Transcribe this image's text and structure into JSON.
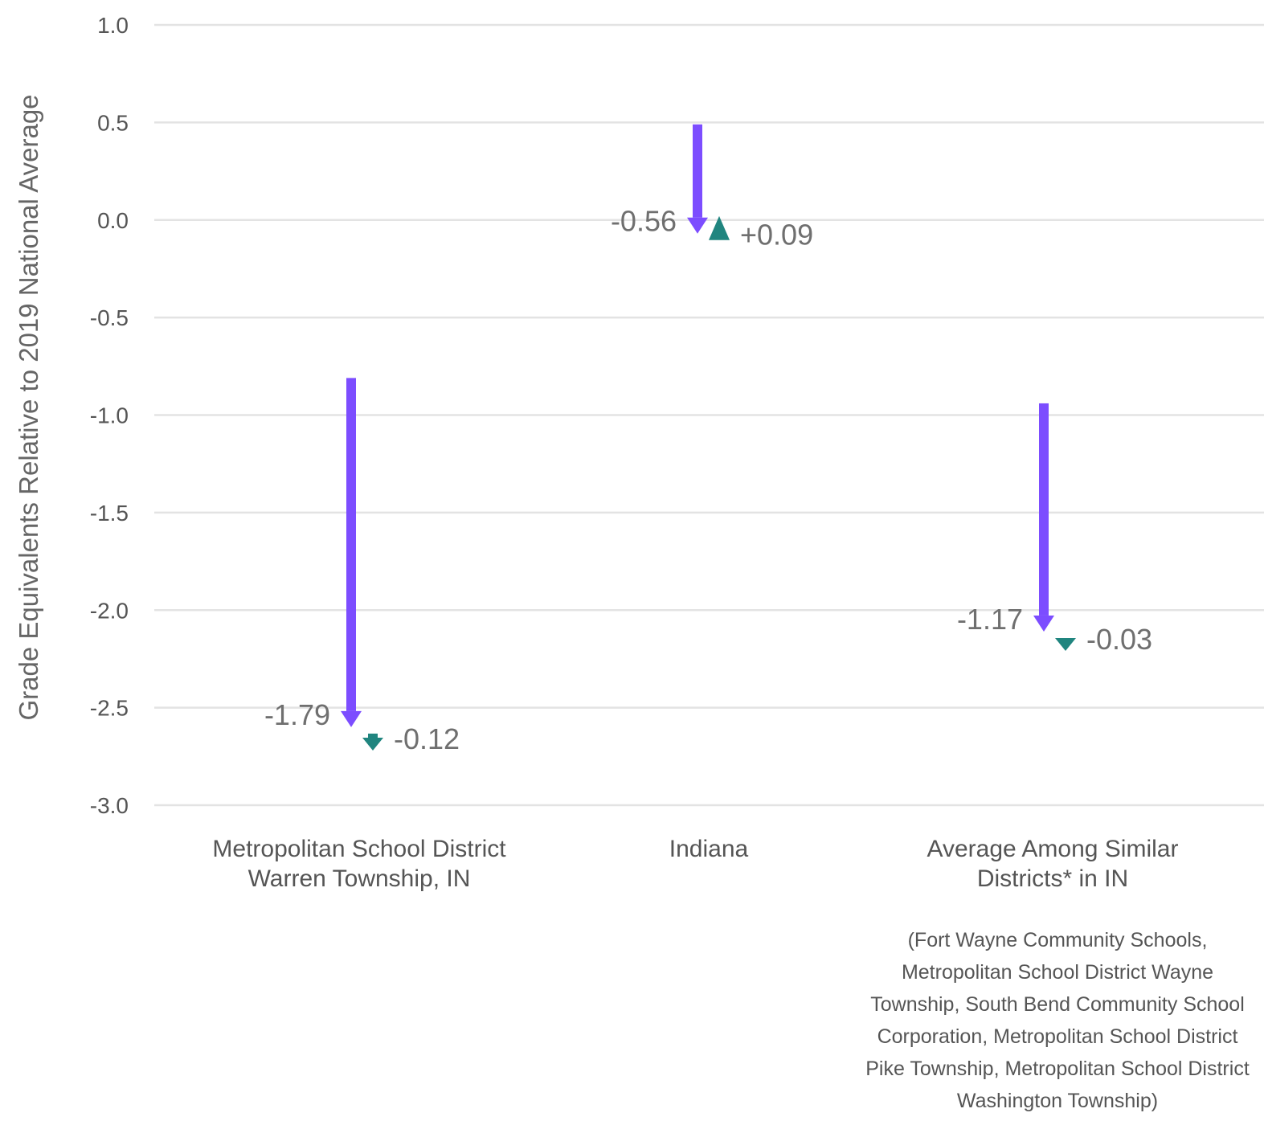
{
  "chart_data": {
    "type": "arrow",
    "ylabel": "Grade Equivalents Relative to 2019 National Average",
    "ylim": [
      -3.0,
      1.0
    ],
    "yticks": [
      "1.0",
      "0.5",
      "0.0",
      "-0.5",
      "-1.0",
      "-1.5",
      "-2.0",
      "-2.5",
      "-3.0"
    ],
    "ytick_values": [
      1.0,
      0.5,
      0.0,
      -0.5,
      -1.0,
      -1.5,
      -2.0,
      -2.5,
      -3.0
    ],
    "grid": true,
    "categories": [
      {
        "lines": [
          "Metropolitan School District",
          "Warren Township, IN"
        ],
        "note": [],
        "start": -0.81,
        "decline": -1.79,
        "decline_label": "-1.79",
        "change": -0.12,
        "change_label": "-0.12"
      },
      {
        "lines": [
          "Indiana"
        ],
        "note": [],
        "start": 0.49,
        "decline": -0.56,
        "decline_label": "-0.56",
        "change": 0.09,
        "change_label": "+0.09"
      },
      {
        "lines": [
          "Average Among Similar",
          "Districts* in IN"
        ],
        "note": [
          "(Fort Wayne Community Schools,",
          "Metropolitan School District Wayne",
          "Township, South Bend Community School",
          "Corporation, Metropolitan School District",
          "Pike Township, Metropolitan School District",
          "Washington Township)"
        ],
        "start": -0.94,
        "decline": -1.17,
        "decline_label": "-1.17",
        "change": -0.03,
        "change_label": "-0.03"
      }
    ],
    "colors": {
      "decline_arrow": "#7c4dff",
      "change_marker": "#20857f",
      "grid": "#e3e3e3",
      "text": "#555555"
    }
  }
}
